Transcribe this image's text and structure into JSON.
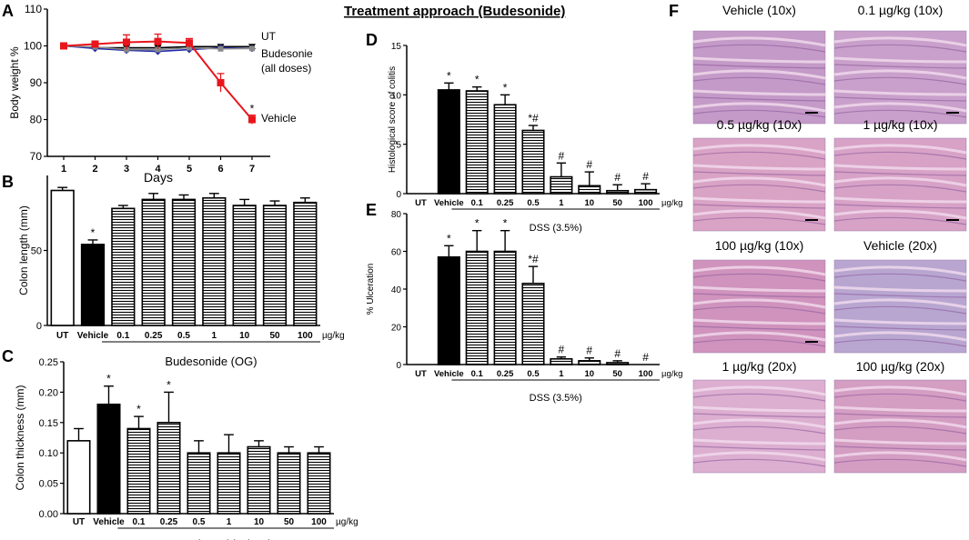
{
  "title": "Treatment approach (Budesonide)",
  "panel_letters": [
    "A",
    "B",
    "C",
    "D",
    "E",
    "F"
  ],
  "chart_data": [
    {
      "panel": "A",
      "type": "line",
      "ylabel": "Body weight %",
      "xlabel": "Days",
      "x": [
        1,
        2,
        3,
        4,
        5,
        6,
        7
      ],
      "ylim": [
        70,
        110
      ],
      "yticks": [
        70,
        80,
        90,
        100,
        110
      ],
      "series": [
        {
          "name": "UT",
          "color": "#000000",
          "values": [
            100,
            99.5,
            99.5,
            99.5,
            99.8,
            99.8,
            99.8
          ]
        },
        {
          "name": "Budesonie (all doses)",
          "color": "#1f2aa8",
          "values": [
            100,
            99.3,
            98.8,
            98.5,
            99,
            99.5,
            99.3
          ]
        },
        {
          "name": "",
          "color": "#888888",
          "values": [
            100,
            99.7,
            99,
            99,
            99.5,
            99.2,
            99.3
          ]
        },
        {
          "name": "Vehicle",
          "color": "#e8151b",
          "values": [
            100,
            100.5,
            101,
            101.2,
            100.8,
            90,
            80
          ],
          "errors": [
            0.8,
            0.8,
            2,
            2,
            1.2,
            2.5,
            1.2
          ],
          "star_label": "*"
        }
      ],
      "labels": [
        "UT",
        "Budesonie",
        "(all doses)",
        "Vehicle"
      ]
    },
    {
      "panel": "B",
      "type": "bar",
      "ylabel": "Colon length (mm)",
      "categories": [
        "UT",
        "Vehicle",
        "0.1",
        "0.25",
        "0.5",
        "1",
        "10",
        "50",
        "100"
      ],
      "unit": "µg/kg",
      "group_label": "Budesonide (OG)",
      "values": [
        90,
        54,
        78,
        84,
        84,
        85,
        80,
        80,
        82
      ],
      "errors": [
        2,
        3,
        2,
        4,
        3,
        3,
        4,
        3,
        3
      ],
      "marks": [
        "",
        "*",
        "",
        "",
        "",
        "",
        "",
        "",
        ""
      ],
      "ylim": [
        0,
        100
      ],
      "yticks": [
        0,
        50
      ]
    },
    {
      "panel": "C",
      "type": "bar",
      "ylabel": "Colon thickness (mm)",
      "categories": [
        "UT",
        "Vehicle",
        "0.1",
        "0.25",
        "0.5",
        "1",
        "10",
        "50",
        "100"
      ],
      "unit": "µg/kg",
      "group_label": "Budesonide (OG)",
      "values": [
        0.12,
        0.18,
        0.14,
        0.15,
        0.1,
        0.1,
        0.11,
        0.1,
        0.1
      ],
      "errors": [
        0.02,
        0.03,
        0.02,
        0.05,
        0.02,
        0.03,
        0.01,
        0.01,
        0.01
      ],
      "marks": [
        "",
        "*",
        "*",
        "*",
        "",
        "",
        "",
        "",
        ""
      ],
      "ylim": [
        0,
        0.25
      ],
      "yticks": [
        "0.00",
        "0.05",
        "0.10",
        "0.15",
        "0.20",
        "0.25"
      ]
    },
    {
      "panel": "D",
      "type": "bar",
      "ylabel": "Histological score of colitis",
      "categories": [
        "UT",
        "Vehicle",
        "0.1",
        "0.25",
        "0.5",
        "1",
        "10",
        "50",
        "100"
      ],
      "unit": "µg/kg",
      "group_label": "DSS (3.5%)",
      "values": [
        0,
        10.5,
        10.4,
        9,
        6.4,
        1.7,
        0.8,
        0.3,
        0.4
      ],
      "errors": [
        0,
        0.7,
        0.4,
        1,
        0.5,
        1.4,
        1.4,
        0.6,
        0.6
      ],
      "marks": [
        "",
        "*",
        "*",
        "*",
        "*#",
        "#",
        "#",
        "#",
        "#"
      ],
      "ylim": [
        0,
        15
      ],
      "yticks": [
        0,
        5,
        10,
        15
      ]
    },
    {
      "panel": "E",
      "type": "bar",
      "ylabel": "% Ulceration",
      "categories": [
        "UT",
        "Vehicle",
        "0.1",
        "0.25",
        "0.5",
        "1",
        "10",
        "50",
        "100"
      ],
      "unit": "µg/kg",
      "group_label": "DSS (3.5%)",
      "values": [
        0,
        57,
        60,
        60,
        43,
        3,
        2,
        1,
        0
      ],
      "errors": [
        0,
        6,
        11,
        11,
        9,
        1,
        1.5,
        1,
        0
      ],
      "marks": [
        "",
        "*",
        "*",
        "*",
        "*#",
        "#",
        "#",
        "#",
        "#"
      ],
      "ylim": [
        0,
        80
      ],
      "yticks": [
        0,
        20,
        40,
        60,
        80
      ]
    }
  ],
  "histology": {
    "panel": "F",
    "images": [
      {
        "caption": "Vehicle (10x)",
        "color": "#c49ac8",
        "scale_bar": true
      },
      {
        "caption": "0.1 µg/kg  (10x)",
        "color": "#c9a0cb",
        "scale_bar": true
      },
      {
        "caption": "0.5 µg/kg  (10x)",
        "color": "#d9a3c5",
        "scale_bar": true
      },
      {
        "caption": "1 µg/kg  (10x)",
        "color": "#d7a2c6",
        "scale_bar": true
      },
      {
        "caption": "100 µg/kg  (10x)",
        "color": "#cf93bd",
        "scale_bar": true
      },
      {
        "caption": "Vehicle  (20x)",
        "color": "#b8a6d1",
        "scale_bar": false
      },
      {
        "caption": "1 µg/kg  (20x)",
        "color": "#dcaed0",
        "scale_bar": false
      },
      {
        "caption": "100 µg/kg  (20x)",
        "color": "#d49dc2",
        "scale_bar": false
      }
    ]
  }
}
